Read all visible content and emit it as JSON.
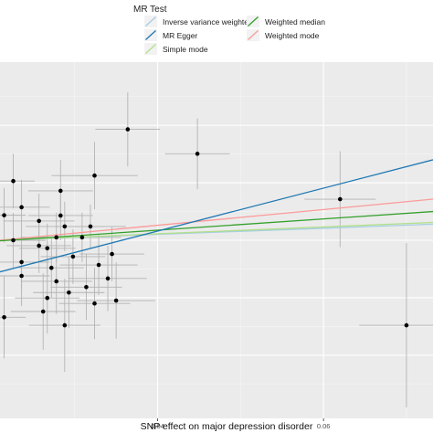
{
  "chart_data": {
    "type": "scatter",
    "xlabel": "SNP effect on major depression disorder",
    "ylabel": "",
    "xlim": [
      0.021,
      0.0732
    ],
    "ylim": [
      -0.062,
      0.062
    ],
    "x_ticks": [
      0.04,
      0.06
    ],
    "x_tick_labels": [
      "0.04",
      "0.06"
    ],
    "grid": true,
    "legend": {
      "title": "MR Test",
      "position": "top",
      "entries": [
        {
          "key": "ivw",
          "label": "Inverse variance weighted",
          "color": "#A6CEE3"
        },
        {
          "key": "wmed",
          "label": "Weighted median",
          "color": "#33A02C"
        },
        {
          "key": "egger",
          "label": "MR Egger",
          "color": "#1F78B4"
        },
        {
          "key": "wmode",
          "label": "Weighted mode",
          "color": "#FB9A99"
        },
        {
          "key": "smode",
          "label": "Simple mode",
          "color": "#B2DF8A"
        }
      ]
    },
    "lines": [
      {
        "name": "Inverse variance weighted",
        "color": "#A6CEE3",
        "points": [
          [
            0.021,
            0.0
          ],
          [
            0.0732,
            0.0056
          ]
        ]
      },
      {
        "name": "Weighted median",
        "color": "#33A02C",
        "points": [
          [
            0.021,
            -0.0002
          ],
          [
            0.0732,
            0.01
          ]
        ]
      },
      {
        "name": "MR Egger",
        "color": "#1F78B4",
        "points": [
          [
            0.021,
            -0.011
          ],
          [
            0.0732,
            0.028
          ]
        ]
      },
      {
        "name": "Weighted mode",
        "color": "#FB9A99",
        "points": [
          [
            0.021,
            0.0
          ],
          [
            0.0732,
            0.0143
          ]
        ]
      },
      {
        "name": "Simple mode",
        "color": "#B2DF8A",
        "points": [
          [
            0.021,
            0.0
          ],
          [
            0.0732,
            0.0062
          ]
        ]
      }
    ],
    "points": [
      {
        "x": 0.0364,
        "y": 0.0386,
        "xerr": 0.0039,
        "yerr": 0.0129
      },
      {
        "x": 0.0448,
        "y": 0.0301,
        "xerr": 0.0039,
        "yerr": 0.0123
      },
      {
        "x": 0.0324,
        "y": 0.0225,
        "xerr": 0.0052,
        "yerr": 0.0117
      },
      {
        "x": 0.0283,
        "y": 0.0172,
        "xerr": 0.0039,
        "yerr": 0.0107
      },
      {
        "x": 0.062,
        "y": 0.0143,
        "xerr": 0.0043,
        "yerr": 0.0167
      },
      {
        "x": 0.0226,
        "y": 0.0206,
        "xerr": 0.0026,
        "yerr": 0.0095
      },
      {
        "x": 0.0236,
        "y": 0.0115,
        "xerr": 0.0034,
        "yerr": 0.0095
      },
      {
        "x": 0.0215,
        "y": 0.0087,
        "xerr": 0.0026,
        "yerr": 0.0095
      },
      {
        "x": 0.0257,
        "y": 0.0067,
        "xerr": 0.0043,
        "yerr": 0.0095
      },
      {
        "x": 0.0283,
        "y": 0.0086,
        "xerr": 0.0039,
        "yerr": 0.0086
      },
      {
        "x": 0.0288,
        "y": 0.0048,
        "xerr": 0.0047,
        "yerr": 0.0086
      },
      {
        "x": 0.0309,
        "y": 0.001,
        "xerr": 0.0047,
        "yerr": 0.0086
      },
      {
        "x": 0.0319,
        "y": 0.0048,
        "xerr": 0.0043,
        "yerr": 0.0076
      },
      {
        "x": 0.0278,
        "y": 0.001,
        "xerr": 0.0043,
        "yerr": 0.0086
      },
      {
        "x": 0.0257,
        "y": -0.0019,
        "xerr": 0.0039,
        "yerr": 0.0095
      },
      {
        "x": 0.0226,
        "y": 0.0,
        "xerr": 0.0039,
        "yerr": 0.0095
      },
      {
        "x": 0.0267,
        "y": -0.0028,
        "xerr": 0.0034,
        "yerr": 0.0086
      },
      {
        "x": 0.0298,
        "y": -0.0057,
        "xerr": 0.0039,
        "yerr": 0.0095
      },
      {
        "x": 0.0345,
        "y": -0.0048,
        "xerr": 0.0039,
        "yerr": 0.0095
      },
      {
        "x": 0.0236,
        "y": -0.0076,
        "xerr": 0.0034,
        "yerr": 0.0095
      },
      {
        "x": 0.0272,
        "y": -0.0096,
        "xerr": 0.0039,
        "yerr": 0.0105
      },
      {
        "x": 0.0329,
        "y": -0.0086,
        "xerr": 0.0047,
        "yerr": 0.0105
      },
      {
        "x": 0.0236,
        "y": -0.0124,
        "xerr": 0.0034,
        "yerr": 0.0105
      },
      {
        "x": 0.0278,
        "y": -0.0143,
        "xerr": 0.0043,
        "yerr": 0.0114
      },
      {
        "x": 0.0314,
        "y": -0.0163,
        "xerr": 0.0043,
        "yerr": 0.0114
      },
      {
        "x": 0.034,
        "y": -0.0133,
        "xerr": 0.0047,
        "yerr": 0.0114
      },
      {
        "x": 0.0293,
        "y": -0.0182,
        "xerr": 0.0043,
        "yerr": 0.0124
      },
      {
        "x": 0.0267,
        "y": -0.0201,
        "xerr": 0.0039,
        "yerr": 0.0124
      },
      {
        "x": 0.0324,
        "y": -0.022,
        "xerr": 0.0043,
        "yerr": 0.0124
      },
      {
        "x": 0.035,
        "y": -0.021,
        "xerr": 0.0047,
        "yerr": 0.0133
      },
      {
        "x": 0.0262,
        "y": -0.0248,
        "xerr": 0.0039,
        "yerr": 0.0133
      },
      {
        "x": 0.0215,
        "y": -0.0268,
        "xerr": 0.0026,
        "yerr": 0.0143
      },
      {
        "x": 0.0288,
        "y": -0.0296,
        "xerr": 0.0043,
        "yerr": 0.0162
      },
      {
        "x": 0.07,
        "y": -0.0296,
        "xerr": 0.0057,
        "yerr": 0.0286
      }
    ]
  }
}
